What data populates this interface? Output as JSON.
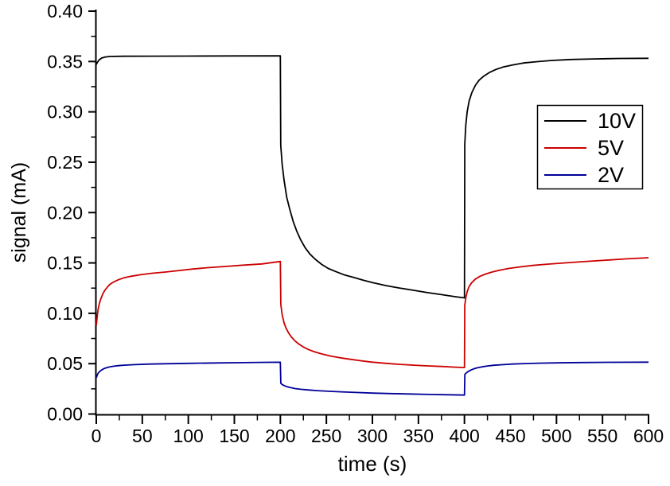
{
  "figure": {
    "background": "#ffffff",
    "axis_color": "#000000",
    "text_color": "#000000"
  },
  "chart_data": {
    "type": "line",
    "title": "",
    "xlabel": "time (s)",
    "ylabel": "signal (mA)",
    "xlim": [
      0,
      600
    ],
    "ylim": [
      0.0,
      0.4
    ],
    "grid": "off",
    "x_major_ticks": [
      0,
      50,
      100,
      150,
      200,
      250,
      300,
      350,
      400,
      450,
      500,
      550,
      600
    ],
    "x_tick_labels": [
      "0",
      "50",
      "100",
      "150",
      "200",
      "250",
      "300",
      "350",
      "400",
      "450",
      "500",
      "550",
      "600"
    ],
    "x_minor_step": 25,
    "y_major_ticks": [
      0.0,
      0.05,
      0.1,
      0.15,
      0.2,
      0.25,
      0.3,
      0.35,
      0.4
    ],
    "y_tick_labels": [
      "0.00",
      "0.05",
      "0.10",
      "0.15",
      "0.20",
      "0.25",
      "0.30",
      "0.35",
      "0.40"
    ],
    "y_minor_step": 0.025,
    "legend": {
      "position": "upper-right",
      "entries": [
        "10V",
        "5V",
        "2V"
      ]
    },
    "series": [
      {
        "name": "10V",
        "color": "#000000",
        "points": [
          [
            0,
            0.347
          ],
          [
            1,
            0.349
          ],
          [
            3,
            0.3515
          ],
          [
            6,
            0.3535
          ],
          [
            10,
            0.3545
          ],
          [
            15,
            0.355
          ],
          [
            30,
            0.3552
          ],
          [
            60,
            0.3553
          ],
          [
            100,
            0.3554
          ],
          [
            150,
            0.3555
          ],
          [
            200,
            0.3556
          ],
          [
            200.4,
            0.267
          ],
          [
            202,
            0.248
          ],
          [
            204,
            0.232
          ],
          [
            207,
            0.215
          ],
          [
            210,
            0.204
          ],
          [
            214,
            0.191
          ],
          [
            218,
            0.181
          ],
          [
            222,
            0.173
          ],
          [
            227,
            0.165
          ],
          [
            232,
            0.159
          ],
          [
            238,
            0.1535
          ],
          [
            245,
            0.1485
          ],
          [
            252,
            0.1445
          ],
          [
            260,
            0.1415
          ],
          [
            270,
            0.138
          ],
          [
            280,
            0.1355
          ],
          [
            290,
            0.1328
          ],
          [
            300,
            0.1305
          ],
          [
            315,
            0.1275
          ],
          [
            330,
            0.125
          ],
          [
            345,
            0.1228
          ],
          [
            360,
            0.1205
          ],
          [
            375,
            0.1185
          ],
          [
            390,
            0.1165
          ],
          [
            400,
            0.1153
          ],
          [
            400.4,
            0.268
          ],
          [
            401.5,
            0.287
          ],
          [
            403,
            0.3
          ],
          [
            405,
            0.3105
          ],
          [
            408,
            0.319
          ],
          [
            412,
            0.3265
          ],
          [
            416,
            0.3315
          ],
          [
            421,
            0.3355
          ],
          [
            427,
            0.339
          ],
          [
            434,
            0.342
          ],
          [
            442,
            0.3445
          ],
          [
            452,
            0.3465
          ],
          [
            464,
            0.3485
          ],
          [
            478,
            0.3498
          ],
          [
            495,
            0.351
          ],
          [
            515,
            0.352
          ],
          [
            540,
            0.3525
          ],
          [
            570,
            0.353
          ],
          [
            600,
            0.3532
          ]
        ]
      },
      {
        "name": "5V",
        "color": "#cc0000",
        "points": [
          [
            0,
            0.088
          ],
          [
            1,
            0.097
          ],
          [
            2,
            0.104
          ],
          [
            3.5,
            0.11
          ],
          [
            5,
            0.1145
          ],
          [
            7,
            0.119
          ],
          [
            9,
            0.1225
          ],
          [
            12,
            0.126
          ],
          [
            15,
            0.1288
          ],
          [
            19,
            0.1312
          ],
          [
            24,
            0.1333
          ],
          [
            30,
            0.1352
          ],
          [
            38,
            0.1368
          ],
          [
            48,
            0.1383
          ],
          [
            60,
            0.1397
          ],
          [
            75,
            0.141
          ],
          [
            90,
            0.1425
          ],
          [
            105,
            0.144
          ],
          [
            120,
            0.1452
          ],
          [
            140,
            0.1465
          ],
          [
            160,
            0.1478
          ],
          [
            180,
            0.149
          ],
          [
            200,
            0.1515
          ],
          [
            200.5,
            0.109
          ],
          [
            202,
            0.0985
          ],
          [
            204,
            0.0905
          ],
          [
            206,
            0.0855
          ],
          [
            209,
            0.0805
          ],
          [
            212,
            0.0765
          ],
          [
            216,
            0.0725
          ],
          [
            220,
            0.0695
          ],
          [
            225,
            0.0665
          ],
          [
            231,
            0.0638
          ],
          [
            238,
            0.0615
          ],
          [
            246,
            0.0595
          ],
          [
            255,
            0.0575
          ],
          [
            265,
            0.0558
          ],
          [
            276,
            0.0543
          ],
          [
            288,
            0.0528
          ],
          [
            300,
            0.0515
          ],
          [
            315,
            0.0503
          ],
          [
            330,
            0.0493
          ],
          [
            345,
            0.0485
          ],
          [
            360,
            0.0478
          ],
          [
            375,
            0.0472
          ],
          [
            388,
            0.0466
          ],
          [
            400,
            0.0461
          ],
          [
            400.4,
            0.108
          ],
          [
            401.5,
            0.1155
          ],
          [
            403,
            0.1215
          ],
          [
            405,
            0.1265
          ],
          [
            408,
            0.1305
          ],
          [
            412,
            0.134
          ],
          [
            417,
            0.1368
          ],
          [
            423,
            0.139
          ],
          [
            430,
            0.141
          ],
          [
            438,
            0.1428
          ],
          [
            448,
            0.1445
          ],
          [
            460,
            0.146
          ],
          [
            474,
            0.1475
          ],
          [
            490,
            0.1488
          ],
          [
            508,
            0.15
          ],
          [
            528,
            0.1512
          ],
          [
            550,
            0.1525
          ],
          [
            575,
            0.154
          ],
          [
            600,
            0.1552
          ]
        ]
      },
      {
        "name": "2V",
        "color": "#000099",
        "points": [
          [
            0,
            0.036
          ],
          [
            1,
            0.0385
          ],
          [
            2,
            0.0405
          ],
          [
            3.5,
            0.042
          ],
          [
            5,
            0.0432
          ],
          [
            7,
            0.0444
          ],
          [
            9,
            0.0453
          ],
          [
            12,
            0.0462
          ],
          [
            15,
            0.0469
          ],
          [
            19,
            0.0475
          ],
          [
            24,
            0.048
          ],
          [
            30,
            0.0485
          ],
          [
            40,
            0.049
          ],
          [
            55,
            0.0495
          ],
          [
            75,
            0.0499
          ],
          [
            100,
            0.0503
          ],
          [
            130,
            0.0507
          ],
          [
            160,
            0.051
          ],
          [
            185,
            0.0513
          ],
          [
            200,
            0.0514
          ],
          [
            200.5,
            0.0305
          ],
          [
            202,
            0.0293
          ],
          [
            204,
            0.0283
          ],
          [
            207,
            0.0272
          ],
          [
            211,
            0.0262
          ],
          [
            216,
            0.0253
          ],
          [
            222,
            0.0246
          ],
          [
            230,
            0.0239
          ],
          [
            240,
            0.0232
          ],
          [
            252,
            0.0226
          ],
          [
            266,
            0.022
          ],
          [
            282,
            0.0214
          ],
          [
            300,
            0.0208
          ],
          [
            320,
            0.0203
          ],
          [
            340,
            0.0199
          ],
          [
            362,
            0.0194
          ],
          [
            382,
            0.0191
          ],
          [
            400,
            0.0188
          ],
          [
            400.5,
            0.0393
          ],
          [
            402,
            0.0408
          ],
          [
            404,
            0.0422
          ],
          [
            407,
            0.0437
          ],
          [
            410,
            0.0448
          ],
          [
            414,
            0.0459
          ],
          [
            419,
            0.0468
          ],
          [
            425,
            0.0477
          ],
          [
            432,
            0.0484
          ],
          [
            441,
            0.049
          ],
          [
            452,
            0.0496
          ],
          [
            465,
            0.0501
          ],
          [
            480,
            0.0505
          ],
          [
            500,
            0.0508
          ],
          [
            525,
            0.0511
          ],
          [
            555,
            0.0513
          ],
          [
            600,
            0.0515
          ]
        ]
      }
    ]
  }
}
